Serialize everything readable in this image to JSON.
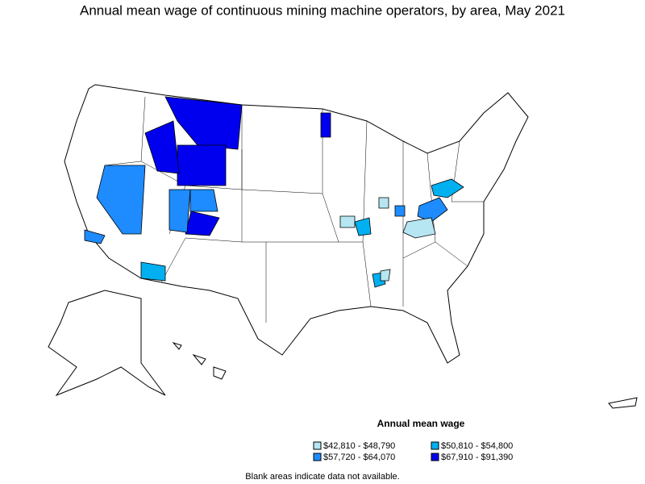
{
  "title": "Annual mean wage of continuous mining machine operators, by area, May 2021",
  "legend": {
    "title": "Annual mean wage",
    "items": [
      {
        "label": "$42,810 - $48,790",
        "color": "#b5e6f2"
      },
      {
        "label": "$50,810 - $54,800",
        "color": "#00b0f0"
      },
      {
        "label": "$57,720 - $64,070",
        "color": "#1e8cff"
      },
      {
        "label": "$67,910 - $91,390",
        "color": "#0000ee"
      }
    ]
  },
  "footnote": "Blank areas indicate data not available."
}
